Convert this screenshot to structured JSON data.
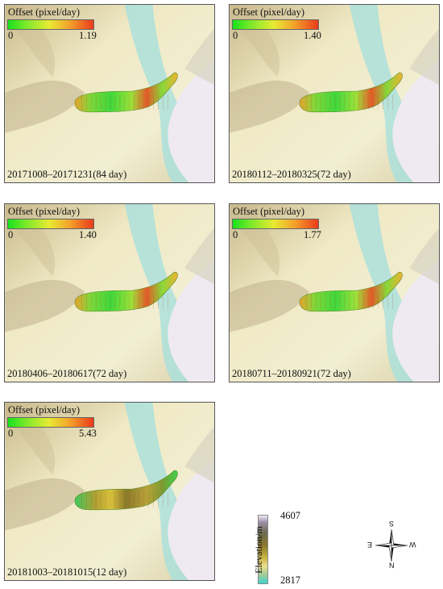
{
  "panels": [
    {
      "legend_title": "Offset (pixel/day)",
      "min": "0",
      "max": "1.19",
      "date": "20171008–20171231(84 day)",
      "palette": "warm"
    },
    {
      "legend_title": "Offset (pixel/day)",
      "min": "0",
      "max": "1.40",
      "date": "20180112–20180325(72 day)",
      "palette": "warm"
    },
    {
      "legend_title": "Offset (pixel/day)",
      "min": "0",
      "max": "1.40",
      "date": "20180406–20180617(72 day)",
      "palette": "warm"
    },
    {
      "legend_title": "Offset (pixel/day)",
      "min": "0",
      "max": "1.77",
      "date": "20180711–20180921(72 day)",
      "palette": "warm"
    },
    {
      "legend_title": "Offset (pixel/day)",
      "min": "0",
      "max": "5.43",
      "date": "20181003–20181015(12 day)",
      "palette": "gold"
    }
  ],
  "elevation_legend": {
    "label": "Elevation/m",
    "max": "4607",
    "min": "2817"
  },
  "compass": {
    "top": "S",
    "bottom": "N",
    "left": "E",
    "right": "W"
  },
  "colors": {
    "terrain_light": "#efe9c4",
    "terrain_dark": "#cbb98a",
    "snow": "#efe9f2",
    "valley": "#a8e0dc"
  }
}
